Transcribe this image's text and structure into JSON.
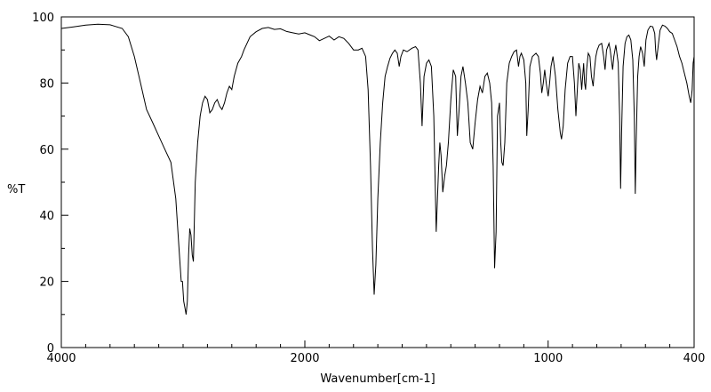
{
  "chart_data": {
    "type": "line",
    "title": "",
    "xlabel": "Wavenumber[cm-1]",
    "ylabel": "%T",
    "xlim": [
      4000,
      400
    ],
    "ylim": [
      0,
      100
    ],
    "x_reversed": true,
    "x_tick_labels": [
      "4000",
      "2000",
      "1000",
      "400"
    ],
    "y_tick_labels": [
      "0",
      "20",
      "40",
      "60",
      "80",
      "100"
    ],
    "grid": false,
    "legend": "none",
    "line_color": "#000000",
    "series": [
      {
        "points": [
          [
            4000,
            96.5
          ],
          [
            3900,
            97
          ],
          [
            3800,
            97.5
          ],
          [
            3700,
            97.8
          ],
          [
            3600,
            97.6
          ],
          [
            3500,
            96.5
          ],
          [
            3450,
            94
          ],
          [
            3400,
            88
          ],
          [
            3350,
            80
          ],
          [
            3300,
            72
          ],
          [
            3250,
            68
          ],
          [
            3200,
            64
          ],
          [
            3150,
            60
          ],
          [
            3100,
            56
          ],
          [
            3060,
            45
          ],
          [
            3030,
            28
          ],
          [
            3015,
            20
          ],
          [
            3005,
            20
          ],
          [
            2995,
            14
          ],
          [
            2985,
            12
          ],
          [
            2975,
            10
          ],
          [
            2965,
            14
          ],
          [
            2955,
            28
          ],
          [
            2945,
            36
          ],
          [
            2935,
            34
          ],
          [
            2925,
            28
          ],
          [
            2915,
            26
          ],
          [
            2900,
            50
          ],
          [
            2880,
            62
          ],
          [
            2860,
            70
          ],
          [
            2840,
            74
          ],
          [
            2820,
            76
          ],
          [
            2800,
            75
          ],
          [
            2780,
            71
          ],
          [
            2760,
            72
          ],
          [
            2740,
            74
          ],
          [
            2720,
            75
          ],
          [
            2700,
            73
          ],
          [
            2680,
            72
          ],
          [
            2660,
            74
          ],
          [
            2640,
            77
          ],
          [
            2620,
            79
          ],
          [
            2600,
            78
          ],
          [
            2580,
            82
          ],
          [
            2550,
            86
          ],
          [
            2520,
            88
          ],
          [
            2500,
            90
          ],
          [
            2450,
            94
          ],
          [
            2400,
            95.5
          ],
          [
            2350,
            96.5
          ],
          [
            2300,
            96.8
          ],
          [
            2250,
            96.2
          ],
          [
            2200,
            96.4
          ],
          [
            2150,
            95.6
          ],
          [
            2100,
            95.2
          ],
          [
            2050,
            94.8
          ],
          [
            2000,
            95.2
          ],
          [
            1980,
            94.6
          ],
          [
            1960,
            94
          ],
          [
            1940,
            92.8
          ],
          [
            1920,
            93.5
          ],
          [
            1900,
            94.2
          ],
          [
            1880,
            93
          ],
          [
            1860,
            94
          ],
          [
            1840,
            93.5
          ],
          [
            1820,
            92
          ],
          [
            1800,
            90
          ],
          [
            1780,
            90
          ],
          [
            1765,
            90.5
          ],
          [
            1750,
            88
          ],
          [
            1740,
            78
          ],
          [
            1730,
            55
          ],
          [
            1722,
            30
          ],
          [
            1715,
            16
          ],
          [
            1708,
            25
          ],
          [
            1700,
            45
          ],
          [
            1690,
            62
          ],
          [
            1680,
            74
          ],
          [
            1670,
            82
          ],
          [
            1660,
            85
          ],
          [
            1650,
            87.5
          ],
          [
            1640,
            89
          ],
          [
            1630,
            90
          ],
          [
            1620,
            89
          ],
          [
            1612,
            85
          ],
          [
            1605,
            88
          ],
          [
            1595,
            90
          ],
          [
            1580,
            89.5
          ],
          [
            1560,
            90.5
          ],
          [
            1545,
            91
          ],
          [
            1535,
            90
          ],
          [
            1525,
            80
          ],
          [
            1518,
            67
          ],
          [
            1510,
            82
          ],
          [
            1500,
            86
          ],
          [
            1490,
            87
          ],
          [
            1480,
            85
          ],
          [
            1470,
            70
          ],
          [
            1460,
            35
          ],
          [
            1450,
            55
          ],
          [
            1445,
            62
          ],
          [
            1440,
            58
          ],
          [
            1433,
            47
          ],
          [
            1425,
            52
          ],
          [
            1418,
            55
          ],
          [
            1410,
            62
          ],
          [
            1400,
            75
          ],
          [
            1390,
            84
          ],
          [
            1380,
            82
          ],
          [
            1373,
            64
          ],
          [
            1366,
            72
          ],
          [
            1358,
            82
          ],
          [
            1350,
            85
          ],
          [
            1340,
            80
          ],
          [
            1330,
            74
          ],
          [
            1320,
            62
          ],
          [
            1310,
            60
          ],
          [
            1300,
            68
          ],
          [
            1290,
            75
          ],
          [
            1280,
            79
          ],
          [
            1270,
            77
          ],
          [
            1260,
            82
          ],
          [
            1250,
            83
          ],
          [
            1240,
            80
          ],
          [
            1232,
            74
          ],
          [
            1226,
            55
          ],
          [
            1220,
            24
          ],
          [
            1214,
            35
          ],
          [
            1208,
            70
          ],
          [
            1200,
            74
          ],
          [
            1195,
            62
          ],
          [
            1190,
            56
          ],
          [
            1185,
            55
          ],
          [
            1178,
            62
          ],
          [
            1170,
            80
          ],
          [
            1160,
            86
          ],
          [
            1150,
            88
          ],
          [
            1140,
            89.5
          ],
          [
            1130,
            90
          ],
          [
            1122,
            85
          ],
          [
            1116,
            88
          ],
          [
            1110,
            89
          ],
          [
            1100,
            87
          ],
          [
            1092,
            80
          ],
          [
            1088,
            64
          ],
          [
            1082,
            72
          ],
          [
            1075,
            85
          ],
          [
            1065,
            88
          ],
          [
            1050,
            89
          ],
          [
            1040,
            88
          ],
          [
            1032,
            83
          ],
          [
            1026,
            77
          ],
          [
            1020,
            80
          ],
          [
            1014,
            84
          ],
          [
            1008,
            80
          ],
          [
            1000,
            76
          ],
          [
            994,
            80
          ],
          [
            988,
            85
          ],
          [
            980,
            88
          ],
          [
            970,
            82
          ],
          [
            960,
            72
          ],
          [
            950,
            65
          ],
          [
            945,
            63
          ],
          [
            938,
            67
          ],
          [
            930,
            78
          ],
          [
            920,
            86
          ],
          [
            910,
            88
          ],
          [
            900,
            88
          ],
          [
            892,
            80
          ],
          [
            886,
            70
          ],
          [
            880,
            78
          ],
          [
            874,
            86
          ],
          [
            868,
            84
          ],
          [
            862,
            78
          ],
          [
            858,
            82
          ],
          [
            854,
            86
          ],
          [
            850,
            80
          ],
          [
            846,
            78
          ],
          [
            842,
            84
          ],
          [
            835,
            89
          ],
          [
            828,
            88
          ],
          [
            822,
            82
          ],
          [
            815,
            79
          ],
          [
            810,
            84
          ],
          [
            804,
            88
          ],
          [
            798,
            90
          ],
          [
            790,
            91.5
          ],
          [
            780,
            92
          ],
          [
            772,
            88
          ],
          [
            766,
            84
          ],
          [
            760,
            90
          ],
          [
            750,
            92
          ],
          [
            745,
            90
          ],
          [
            735,
            84
          ],
          [
            730,
            88
          ],
          [
            722,
            91.5
          ],
          [
            712,
            86
          ],
          [
            706,
            70
          ],
          [
            702,
            48
          ],
          [
            698,
            65
          ],
          [
            692,
            85
          ],
          [
            684,
            92
          ],
          [
            676,
            94
          ],
          [
            668,
            94.5
          ],
          [
            660,
            93
          ],
          [
            652,
            87
          ],
          [
            646,
            70
          ],
          [
            642,
            46.5
          ],
          [
            638,
            62
          ],
          [
            632,
            82
          ],
          [
            626,
            88
          ],
          [
            620,
            91
          ],
          [
            612,
            89
          ],
          [
            605,
            85
          ],
          [
            598,
            93
          ],
          [
            590,
            96
          ],
          [
            580,
            97.2
          ],
          [
            570,
            97
          ],
          [
            562,
            95
          ],
          [
            558,
            90
          ],
          [
            554,
            87
          ],
          [
            548,
            91
          ],
          [
            540,
            96
          ],
          [
            530,
            97.5
          ],
          [
            520,
            97.2
          ],
          [
            510,
            96.5
          ],
          [
            500,
            95.5
          ],
          [
            490,
            95
          ],
          [
            480,
            93
          ],
          [
            470,
            91
          ],
          [
            460,
            88
          ],
          [
            450,
            86
          ],
          [
            440,
            83
          ],
          [
            430,
            80
          ],
          [
            420,
            76
          ],
          [
            414,
            74
          ],
          [
            408,
            78
          ],
          [
            404,
            86
          ],
          [
            400,
            88
          ]
        ]
      }
    ]
  }
}
